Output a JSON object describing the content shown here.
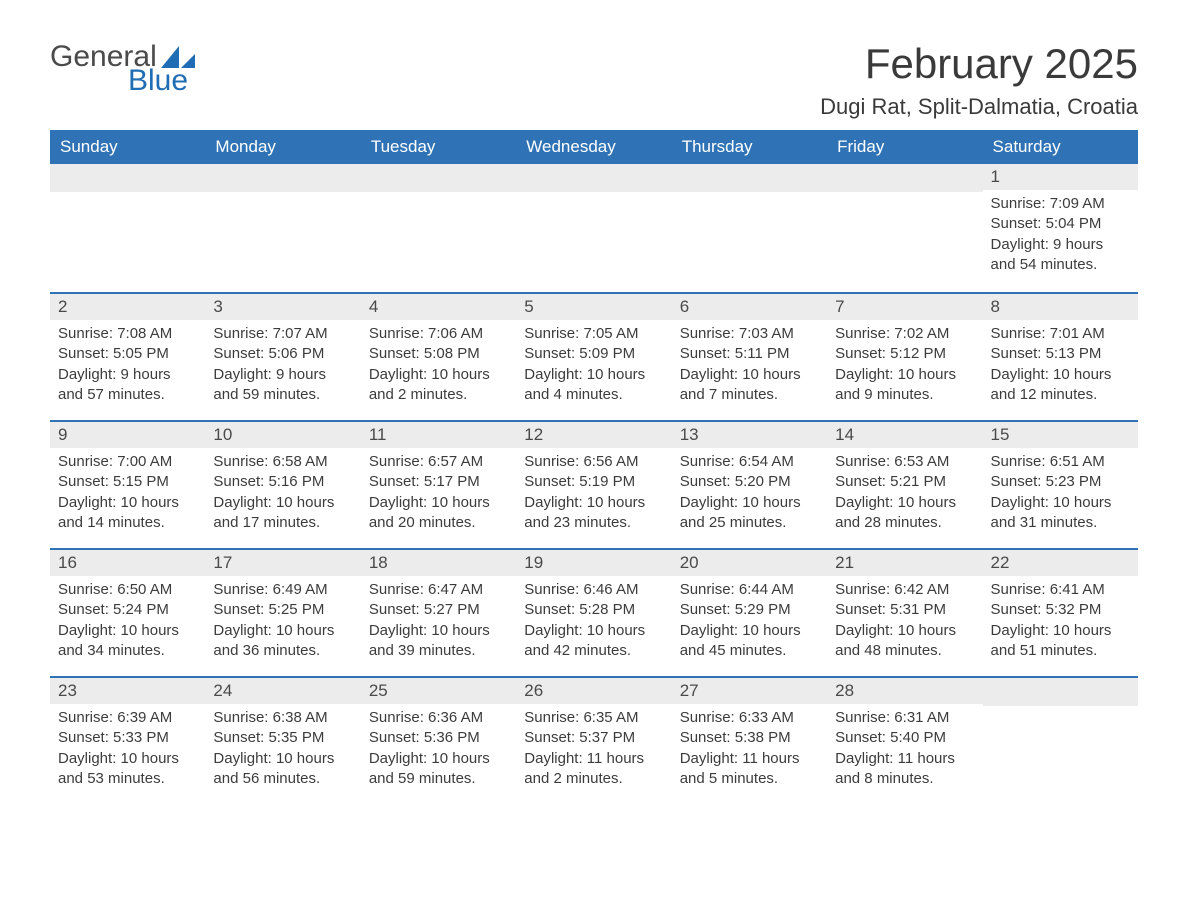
{
  "logo": {
    "word1": "General",
    "word2": "Blue",
    "accent_color": "#1f6db5"
  },
  "title": "February 2025",
  "location": "Dugi Rat, Split-Dalmatia, Croatia",
  "colors": {
    "header_bg": "#2f73b6",
    "header_text": "#ffffff",
    "daynum_bg": "#ececec",
    "row_border": "#2f73b6",
    "body_text": "#3c3c3c"
  },
  "weekdays": [
    "Sunday",
    "Monday",
    "Tuesday",
    "Wednesday",
    "Thursday",
    "Friday",
    "Saturday"
  ],
  "labels": {
    "sunrise": "Sunrise",
    "sunset": "Sunset",
    "daylight": "Daylight"
  },
  "weeks": [
    [
      null,
      null,
      null,
      null,
      null,
      null,
      {
        "n": "1",
        "sunrise": "7:09 AM",
        "sunset": "5:04 PM",
        "daylight": "9 hours and 54 minutes."
      }
    ],
    [
      {
        "n": "2",
        "sunrise": "7:08 AM",
        "sunset": "5:05 PM",
        "daylight": "9 hours and 57 minutes."
      },
      {
        "n": "3",
        "sunrise": "7:07 AM",
        "sunset": "5:06 PM",
        "daylight": "9 hours and 59 minutes."
      },
      {
        "n": "4",
        "sunrise": "7:06 AM",
        "sunset": "5:08 PM",
        "daylight": "10 hours and 2 minutes."
      },
      {
        "n": "5",
        "sunrise": "7:05 AM",
        "sunset": "5:09 PM",
        "daylight": "10 hours and 4 minutes."
      },
      {
        "n": "6",
        "sunrise": "7:03 AM",
        "sunset": "5:11 PM",
        "daylight": "10 hours and 7 minutes."
      },
      {
        "n": "7",
        "sunrise": "7:02 AM",
        "sunset": "5:12 PM",
        "daylight": "10 hours and 9 minutes."
      },
      {
        "n": "8",
        "sunrise": "7:01 AM",
        "sunset": "5:13 PM",
        "daylight": "10 hours and 12 minutes."
      }
    ],
    [
      {
        "n": "9",
        "sunrise": "7:00 AM",
        "sunset": "5:15 PM",
        "daylight": "10 hours and 14 minutes."
      },
      {
        "n": "10",
        "sunrise": "6:58 AM",
        "sunset": "5:16 PM",
        "daylight": "10 hours and 17 minutes."
      },
      {
        "n": "11",
        "sunrise": "6:57 AM",
        "sunset": "5:17 PM",
        "daylight": "10 hours and 20 minutes."
      },
      {
        "n": "12",
        "sunrise": "6:56 AM",
        "sunset": "5:19 PM",
        "daylight": "10 hours and 23 minutes."
      },
      {
        "n": "13",
        "sunrise": "6:54 AM",
        "sunset": "5:20 PM",
        "daylight": "10 hours and 25 minutes."
      },
      {
        "n": "14",
        "sunrise": "6:53 AM",
        "sunset": "5:21 PM",
        "daylight": "10 hours and 28 minutes."
      },
      {
        "n": "15",
        "sunrise": "6:51 AM",
        "sunset": "5:23 PM",
        "daylight": "10 hours and 31 minutes."
      }
    ],
    [
      {
        "n": "16",
        "sunrise": "6:50 AM",
        "sunset": "5:24 PM",
        "daylight": "10 hours and 34 minutes."
      },
      {
        "n": "17",
        "sunrise": "6:49 AM",
        "sunset": "5:25 PM",
        "daylight": "10 hours and 36 minutes."
      },
      {
        "n": "18",
        "sunrise": "6:47 AM",
        "sunset": "5:27 PM",
        "daylight": "10 hours and 39 minutes."
      },
      {
        "n": "19",
        "sunrise": "6:46 AM",
        "sunset": "5:28 PM",
        "daylight": "10 hours and 42 minutes."
      },
      {
        "n": "20",
        "sunrise": "6:44 AM",
        "sunset": "5:29 PM",
        "daylight": "10 hours and 45 minutes."
      },
      {
        "n": "21",
        "sunrise": "6:42 AM",
        "sunset": "5:31 PM",
        "daylight": "10 hours and 48 minutes."
      },
      {
        "n": "22",
        "sunrise": "6:41 AM",
        "sunset": "5:32 PM",
        "daylight": "10 hours and 51 minutes."
      }
    ],
    [
      {
        "n": "23",
        "sunrise": "6:39 AM",
        "sunset": "5:33 PM",
        "daylight": "10 hours and 53 minutes."
      },
      {
        "n": "24",
        "sunrise": "6:38 AM",
        "sunset": "5:35 PM",
        "daylight": "10 hours and 56 minutes."
      },
      {
        "n": "25",
        "sunrise": "6:36 AM",
        "sunset": "5:36 PM",
        "daylight": "10 hours and 59 minutes."
      },
      {
        "n": "26",
        "sunrise": "6:35 AM",
        "sunset": "5:37 PM",
        "daylight": "11 hours and 2 minutes."
      },
      {
        "n": "27",
        "sunrise": "6:33 AM",
        "sunset": "5:38 PM",
        "daylight": "11 hours and 5 minutes."
      },
      {
        "n": "28",
        "sunrise": "6:31 AM",
        "sunset": "5:40 PM",
        "daylight": "11 hours and 8 minutes."
      },
      null
    ]
  ]
}
